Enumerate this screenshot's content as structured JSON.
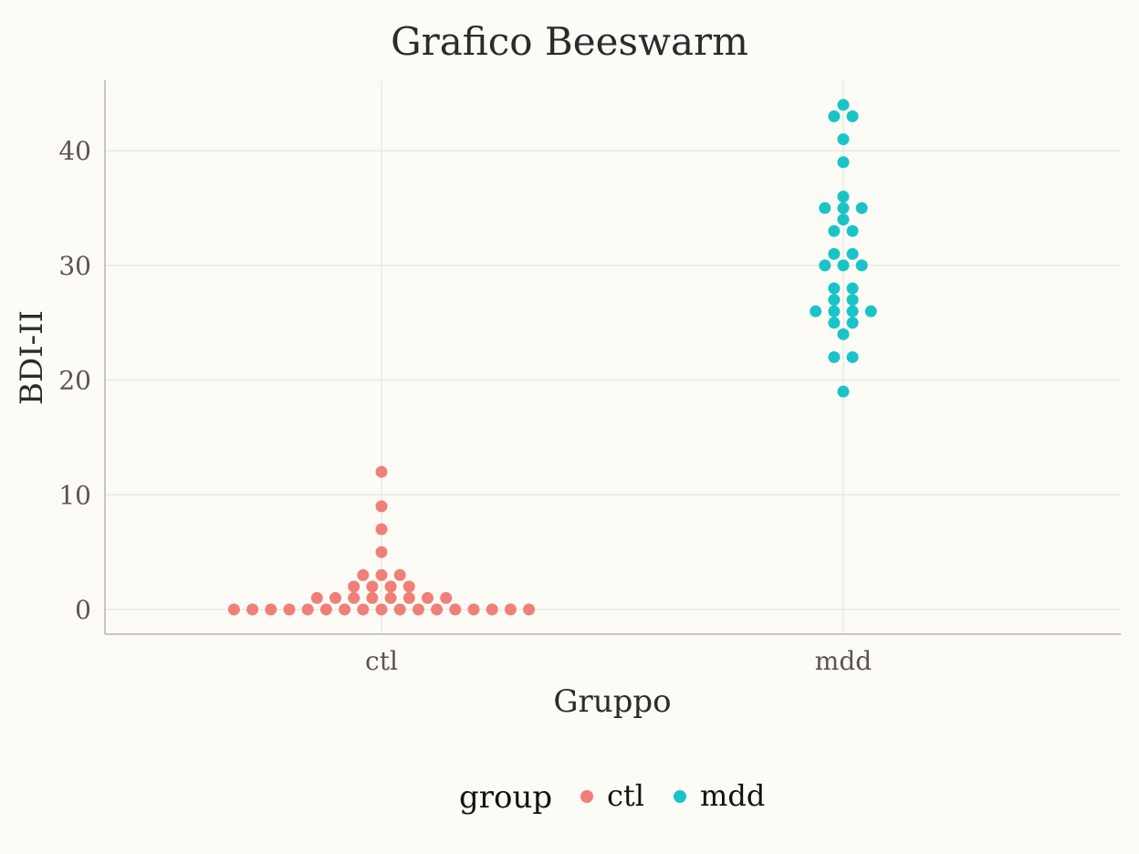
{
  "chart_data": {
    "type": "scatter",
    "subtype": "beeswarm",
    "title": "Grafico Beeswarm",
    "xlabel": "Gruppo",
    "ylabel": "BDI-II",
    "categories": [
      "ctl",
      "mdd"
    ],
    "ylim": [
      -2,
      46
    ],
    "yticks": [
      0,
      10,
      20,
      30,
      40
    ],
    "grid": true,
    "legend": {
      "title": "group",
      "position": "bottom",
      "entries": [
        "ctl",
        "mdd"
      ]
    },
    "colors": {
      "ctl": "#f07f77",
      "mdd": "#19c4c8"
    },
    "series": [
      {
        "name": "ctl",
        "values": [
          0,
          0,
          0,
          0,
          0,
          0,
          0,
          0,
          0,
          0,
          0,
          0,
          0,
          0,
          0,
          0,
          0,
          1,
          1,
          1,
          1,
          1,
          1,
          1,
          1,
          2,
          2,
          2,
          2,
          3,
          3,
          3,
          5,
          7,
          9,
          12
        ]
      },
      {
        "name": "mdd",
        "values": [
          19,
          22,
          22,
          24,
          25,
          25,
          26,
          26,
          26,
          26,
          27,
          27,
          28,
          28,
          30,
          30,
          30,
          31,
          31,
          33,
          33,
          34,
          35,
          35,
          35,
          36,
          39,
          41,
          43,
          43,
          44
        ]
      }
    ]
  }
}
